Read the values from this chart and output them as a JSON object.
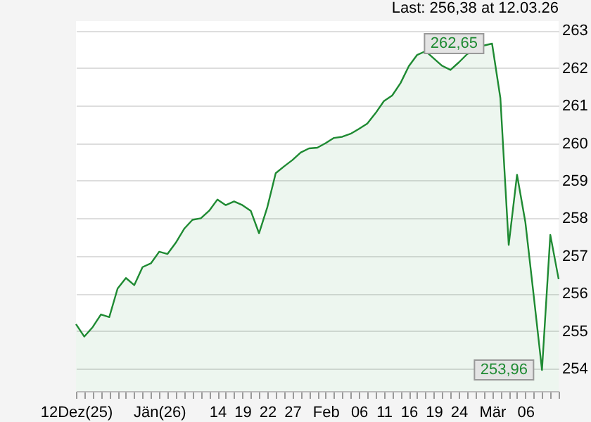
{
  "chart_data": {
    "type": "area",
    "categories": [
      "12Dez(25)",
      null,
      null,
      null,
      null,
      null,
      null,
      null,
      null,
      null,
      "Jän(26)",
      null,
      null,
      null,
      null,
      null,
      null,
      "14",
      null,
      null,
      "19",
      null,
      null,
      "22",
      null,
      null,
      "27",
      null,
      null,
      null,
      "Feb",
      null,
      null,
      null,
      "06",
      null,
      null,
      "11",
      null,
      null,
      "16",
      null,
      null,
      "19",
      null,
      null,
      "24",
      null,
      null,
      null,
      "Mär",
      null,
      null,
      null,
      "06",
      null,
      null,
      null,
      null
    ],
    "series": [
      {
        "color": "#1e8a32",
        "values": [
          255.18,
          254.85,
          255.1,
          255.44,
          255.37,
          256.13,
          256.41,
          256.22,
          256.7,
          256.8,
          257.11,
          257.05,
          257.35,
          257.72,
          257.96,
          258.0,
          258.2,
          258.5,
          258.35,
          258.45,
          258.35,
          258.2,
          257.6,
          258.3,
          259.2,
          259.38,
          259.55,
          259.75,
          259.86,
          259.88,
          260.0,
          260.14,
          260.17,
          260.25,
          260.38,
          260.52,
          260.8,
          261.12,
          261.27,
          261.6,
          262.05,
          262.35,
          262.45,
          null,
          262.06,
          261.95,
          262.15,
          262.37,
          null,
          262.6,
          262.65,
          261.2,
          257.29,
          259.16,
          257.9,
          255.95,
          253.96,
          257.56,
          256.38
        ]
      }
    ],
    "ylim": [
      253.4,
      263.25
    ],
    "yticks": [
      254,
      255,
      256,
      257,
      258,
      259,
      260,
      261,
      262,
      263
    ],
    "grid": "y",
    "annotations": [
      "Last: 256,38 at 12.03.26",
      {
        "text": "262,65",
        "y": 262.65
      },
      {
        "text": "253,96",
        "y": 253.96
      }
    ]
  }
}
